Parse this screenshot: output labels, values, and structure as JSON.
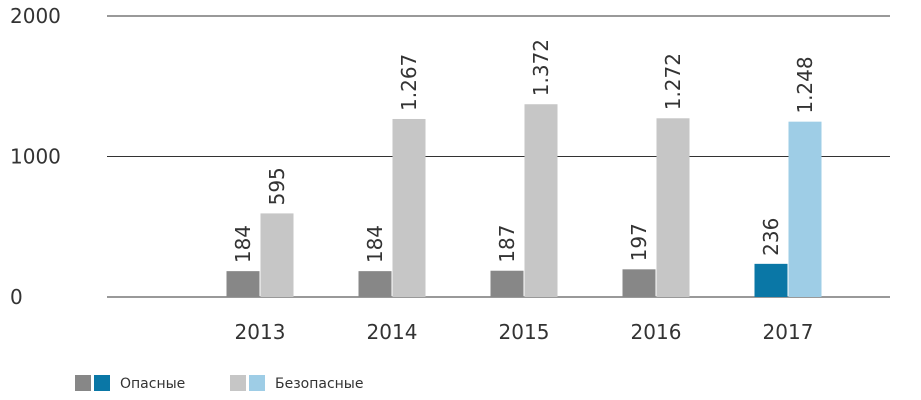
{
  "chart_data": {
    "type": "bar",
    "categories": [
      "2013",
      "2014",
      "2015",
      "2016",
      "2017"
    ],
    "series": [
      {
        "name": "Опасные",
        "colors": [
          "#878787",
          "#878787",
          "#878787",
          "#878787",
          "#0a77a6"
        ],
        "values": [
          184,
          184,
          187,
          197,
          236
        ],
        "value_labels": [
          "184",
          "184",
          "187",
          "197",
          "236"
        ]
      },
      {
        "name": "Безопасные",
        "colors": [
          "#c6c6c6",
          "#c6c6c6",
          "#c6c6c6",
          "#c6c6c6",
          "#9ecde6"
        ],
        "values": [
          595,
          1267,
          1372,
          1272,
          1248
        ],
        "value_labels": [
          "595",
          "1.267",
          "1.372",
          "1.272",
          "1.248"
        ]
      }
    ],
    "ylim": [
      0,
      2000
    ],
    "yticks": [
      0,
      1000,
      2000
    ],
    "grid": true
  }
}
